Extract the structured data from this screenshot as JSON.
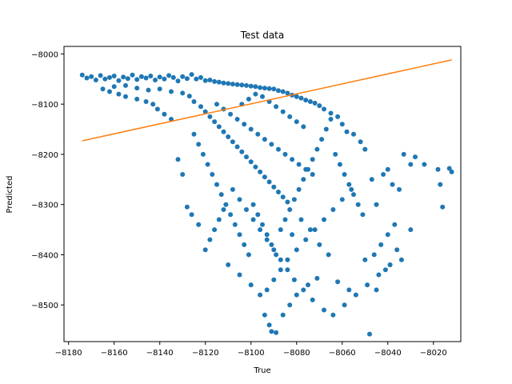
{
  "chart_data": {
    "type": "scatter",
    "title": "Test data",
    "xlabel": "True",
    "ylabel": "Predicted",
    "xlim": [
      -8182,
      -8008
    ],
    "ylim": [
      -8573,
      -7985
    ],
    "xticks": [
      -8180,
      -8160,
      -8140,
      -8120,
      -8100,
      -8080,
      -8060,
      -8040,
      -8020
    ],
    "yticks": [
      -8000,
      -8100,
      -8200,
      -8300,
      -8400,
      -8500
    ],
    "grid": false,
    "colors": {
      "points": "#1f77b4",
      "line": "#ff7f0e"
    },
    "series": [
      {
        "type": "scatter",
        "points": [
          [
            -8174,
            -8042
          ],
          [
            -8172,
            -8048
          ],
          [
            -8170,
            -8045
          ],
          [
            -8168,
            -8052
          ],
          [
            -8166,
            -8043
          ],
          [
            -8164,
            -8050
          ],
          [
            -8162,
            -8047
          ],
          [
            -8160,
            -8044
          ],
          [
            -8158,
            -8053
          ],
          [
            -8156,
            -8046
          ],
          [
            -8154,
            -8049
          ],
          [
            -8152,
            -8042
          ],
          [
            -8150,
            -8051
          ],
          [
            -8148,
            -8045
          ],
          [
            -8146,
            -8048
          ],
          [
            -8144,
            -8044
          ],
          [
            -8142,
            -8052
          ],
          [
            -8140,
            -8046
          ],
          [
            -8138,
            -8050
          ],
          [
            -8136,
            -8043
          ],
          [
            -8134,
            -8047
          ],
          [
            -8132,
            -8054
          ],
          [
            -8130,
            -8045
          ],
          [
            -8128,
            -8049
          ],
          [
            -8126,
            -8041
          ],
          [
            -8124,
            -8050
          ],
          [
            -8122,
            -8047
          ],
          [
            -8120,
            -8053
          ],
          [
            -8118,
            -8052
          ],
          [
            -8116,
            -8055
          ],
          [
            -8114,
            -8056
          ],
          [
            -8112,
            -8058
          ],
          [
            -8110,
            -8059
          ],
          [
            -8108,
            -8060
          ],
          [
            -8106,
            -8061
          ],
          [
            -8104,
            -8062
          ],
          [
            -8102,
            -8063
          ],
          [
            -8100,
            -8064
          ],
          [
            -8098,
            -8065
          ],
          [
            -8096,
            -8067
          ],
          [
            -8094,
            -8068
          ],
          [
            -8092,
            -8069
          ],
          [
            -8090,
            -8070
          ],
          [
            -8088,
            -8073
          ],
          [
            -8086,
            -8075
          ],
          [
            -8084,
            -8078
          ],
          [
            -8082,
            -8082
          ],
          [
            -8080,
            -8085
          ],
          [
            -8078,
            -8088
          ],
          [
            -8076,
            -8092
          ],
          [
            -8074,
            -8095
          ],
          [
            -8072,
            -8098
          ],
          [
            -8070,
            -8103
          ],
          [
            -8160,
            -8065
          ],
          [
            -8155,
            -8063
          ],
          [
            -8150,
            -8068
          ],
          [
            -8145,
            -8072
          ],
          [
            -8140,
            -8070
          ],
          [
            -8135,
            -8075
          ],
          [
            -8130,
            -8078
          ],
          [
            -8127,
            -8084
          ],
          [
            -8125,
            -8095
          ],
          [
            -8122,
            -8105
          ],
          [
            -8120,
            -8115
          ],
          [
            -8118,
            -8125
          ],
          [
            -8116,
            -8135
          ],
          [
            -8114,
            -8145
          ],
          [
            -8112,
            -8155
          ],
          [
            -8110,
            -8165
          ],
          [
            -8108,
            -8175
          ],
          [
            -8106,
            -8185
          ],
          [
            -8104,
            -8195
          ],
          [
            -8102,
            -8205
          ],
          [
            -8100,
            -8215
          ],
          [
            -8098,
            -8225
          ],
          [
            -8096,
            -8235
          ],
          [
            -8094,
            -8245
          ],
          [
            -8092,
            -8255
          ],
          [
            -8090,
            -8265
          ],
          [
            -8088,
            -8275
          ],
          [
            -8086,
            -8285
          ],
          [
            -8084,
            -8295
          ],
          [
            -8115,
            -8100
          ],
          [
            -8112,
            -8110
          ],
          [
            -8109,
            -8120
          ],
          [
            -8106,
            -8130
          ],
          [
            -8103,
            -8140
          ],
          [
            -8100,
            -8150
          ],
          [
            -8097,
            -8160
          ],
          [
            -8094,
            -8170
          ],
          [
            -8091,
            -8180
          ],
          [
            -8088,
            -8190
          ],
          [
            -8085,
            -8200
          ],
          [
            -8082,
            -8210
          ],
          [
            -8079,
            -8220
          ],
          [
            -8076,
            -8230
          ],
          [
            -8073,
            -8240
          ],
          [
            -8125,
            -8160
          ],
          [
            -8123,
            -8180
          ],
          [
            -8121,
            -8200
          ],
          [
            -8119,
            -8220
          ],
          [
            -8117,
            -8240
          ],
          [
            -8115,
            -8260
          ],
          [
            -8113,
            -8280
          ],
          [
            -8111,
            -8300
          ],
          [
            -8109,
            -8320
          ],
          [
            -8107,
            -8340
          ],
          [
            -8105,
            -8360
          ],
          [
            -8103,
            -8380
          ],
          [
            -8101,
            -8400
          ],
          [
            -8099,
            -8300
          ],
          [
            -8097,
            -8320
          ],
          [
            -8095,
            -8340
          ],
          [
            -8093,
            -8360
          ],
          [
            -8091,
            -8380
          ],
          [
            -8089,
            -8400
          ],
          [
            -8087,
            -8350
          ],
          [
            -8085,
            -8330
          ],
          [
            -8083,
            -8310
          ],
          [
            -8081,
            -8290
          ],
          [
            -8079,
            -8270
          ],
          [
            -8077,
            -8250
          ],
          [
            -8075,
            -8230
          ],
          [
            -8073,
            -8210
          ],
          [
            -8071,
            -8190
          ],
          [
            -8069,
            -8170
          ],
          [
            -8067,
            -8150
          ],
          [
            -8065,
            -8130
          ],
          [
            -8063,
            -8200
          ],
          [
            -8061,
            -8220
          ],
          [
            -8059,
            -8240
          ],
          [
            -8057,
            -8260
          ],
          [
            -8055,
            -8280
          ],
          [
            -8053,
            -8300
          ],
          [
            -8051,
            -8320
          ],
          [
            -8110,
            -8420
          ],
          [
            -8105,
            -8440
          ],
          [
            -8100,
            -8460
          ],
          [
            -8096,
            -8480
          ],
          [
            -8093,
            -8470
          ],
          [
            -8090,
            -8450
          ],
          [
            -8087,
            -8430
          ],
          [
            -8084,
            -8410
          ],
          [
            -8080,
            -8390
          ],
          [
            -8076,
            -8370
          ],
          [
            -8072,
            -8350
          ],
          [
            -8068,
            -8330
          ],
          [
            -8064,
            -8310
          ],
          [
            -8060,
            -8290
          ],
          [
            -8056,
            -8270
          ],
          [
            -8094,
            -8520
          ],
          [
            -8092,
            -8540
          ],
          [
            -8091,
            -8553
          ],
          [
            -8089,
            -8555
          ],
          [
            -8086,
            -8520
          ],
          [
            -8083,
            -8500
          ],
          [
            -8080,
            -8480
          ],
          [
            -8075,
            -8460
          ],
          [
            -8071,
            -8447
          ],
          [
            -8062,
            -8454
          ],
          [
            -8057,
            -8470
          ],
          [
            -8048,
            -8558
          ],
          [
            -8050,
            -8410
          ],
          [
            -8046,
            -8400
          ],
          [
            -8043,
            -8380
          ],
          [
            -8040,
            -8360
          ],
          [
            -8037,
            -8340
          ],
          [
            -8030,
            -8350
          ],
          [
            -8034,
            -8410
          ],
          [
            -8047,
            -8250
          ],
          [
            -8045,
            -8300
          ],
          [
            -8042,
            -8240
          ],
          [
            -8040,
            -8230
          ],
          [
            -8038,
            -8260
          ],
          [
            -8035,
            -8270
          ],
          [
            -8030,
            -8220
          ],
          [
            -8028,
            -8205
          ],
          [
            -8033,
            -8200
          ],
          [
            -8050,
            -8190
          ],
          [
            -8052,
            -8175
          ],
          [
            -8055,
            -8160
          ],
          [
            -8058,
            -8155
          ],
          [
            -8060,
            -8140
          ],
          [
            -8062,
            -8125
          ],
          [
            -8065,
            -8118
          ],
          [
            -8068,
            -8110
          ],
          [
            -8024,
            -8220
          ],
          [
            -8018,
            -8230
          ],
          [
            -8017,
            -8260
          ],
          [
            -8016,
            -8305
          ],
          [
            -8013,
            -8228
          ],
          [
            -8012,
            -8235
          ],
          [
            -8045,
            -8470
          ],
          [
            -8041,
            -8430
          ],
          [
            -8039,
            -8420
          ],
          [
            -8066,
            -8400
          ],
          [
            -8070,
            -8380
          ],
          [
            -8074,
            -8350
          ],
          [
            -8078,
            -8330
          ],
          [
            -8082,
            -8360
          ],
          [
            -8120,
            -8390
          ],
          [
            -8118,
            -8370
          ],
          [
            -8116,
            -8350
          ],
          [
            -8114,
            -8330
          ],
          [
            -8112,
            -8310
          ],
          [
            -8123,
            -8340
          ],
          [
            -8126,
            -8320
          ],
          [
            -8128,
            -8305
          ],
          [
            -8130,
            -8240
          ],
          [
            -8132,
            -8210
          ],
          [
            -8135,
            -8130
          ],
          [
            -8138,
            -8120
          ],
          [
            -8141,
            -8110
          ],
          [
            -8143,
            -8100
          ],
          [
            -8146,
            -8095
          ],
          [
            -8150,
            -8090
          ],
          [
            -8155,
            -8085
          ],
          [
            -8158,
            -8080
          ],
          [
            -8162,
            -8075
          ],
          [
            -8165,
            -8070
          ],
          [
            -8104,
            -8100
          ],
          [
            -8101,
            -8090
          ],
          [
            -8098,
            -8080
          ],
          [
            -8095,
            -8085
          ],
          [
            -8092,
            -8095
          ],
          [
            -8089,
            -8105
          ],
          [
            -8086,
            -8115
          ],
          [
            -8083,
            -8125
          ],
          [
            -8080,
            -8135
          ],
          [
            -8077,
            -8145
          ],
          [
            -8108,
            -8270
          ],
          [
            -8105,
            -8290
          ],
          [
            -8102,
            -8310
          ],
          [
            -8099,
            -8330
          ],
          [
            -8096,
            -8350
          ],
          [
            -8093,
            -8370
          ],
          [
            -8090,
            -8390
          ],
          [
            -8087,
            -8410
          ],
          [
            -8084,
            -8430
          ],
          [
            -8081,
            -8450
          ],
          [
            -8077,
            -8470
          ],
          [
            -8073,
            -8490
          ],
          [
            -8068,
            -8510
          ],
          [
            -8064,
            -8520
          ],
          [
            -8059,
            -8500
          ],
          [
            -8054,
            -8480
          ],
          [
            -8049,
            -8460
          ],
          [
            -8044,
            -8440
          ],
          [
            -8039,
            -8420
          ],
          [
            -8036,
            -8390
          ]
        ]
      },
      {
        "type": "line",
        "points": [
          [
            -8174,
            -8173
          ],
          [
            -8012,
            -8012
          ]
        ]
      }
    ]
  }
}
